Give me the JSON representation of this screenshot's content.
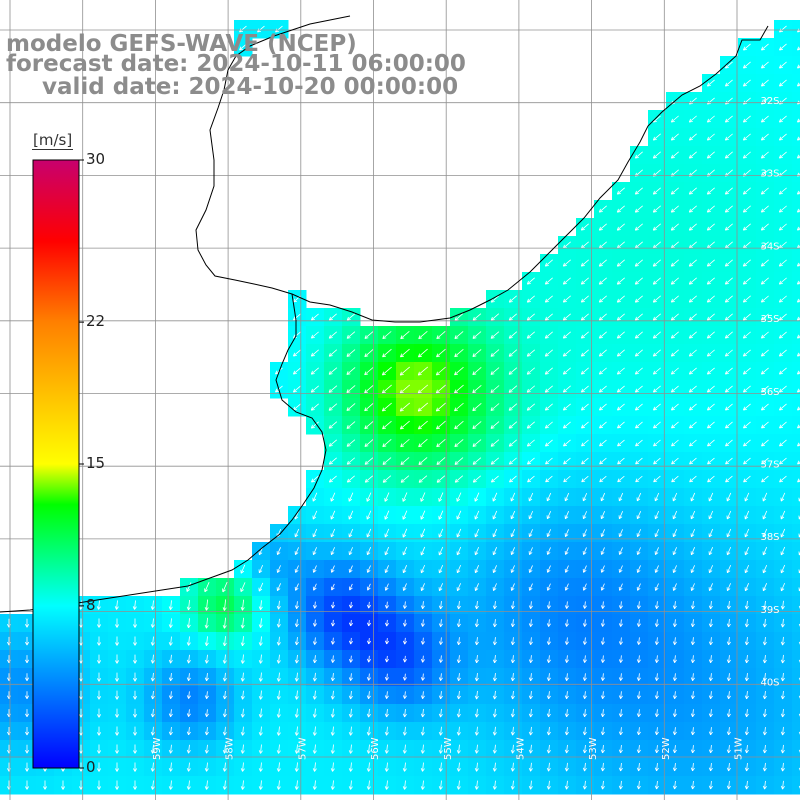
{
  "title": {
    "line1": "modelo GEFS-WAVE (NCEP)",
    "line2": "forecast date: 2024-10-11 06:00:00",
    "line3": "valid date: 2024-10-20 00:00:00"
  },
  "colorbar": {
    "unit": "[m/s]",
    "ticks": [
      {
        "label": "30",
        "value": 30
      },
      {
        "label": "22",
        "value": 22
      },
      {
        "label": "15",
        "value": 15
      },
      {
        "label": "8",
        "value": 8
      },
      {
        "label": "0",
        "value": 0
      }
    ],
    "min": 0,
    "max": 30,
    "colors": [
      "#0000ff",
      "#00ffff",
      "#00ff00",
      "#ffff00",
      "#ff8c00",
      "#ff0000",
      "#c8006e"
    ]
  },
  "lat_labels": [
    "32S",
    "33S",
    "34S",
    "35S",
    "36S",
    "37S",
    "38S",
    "39S",
    "40S"
  ],
  "lon_labels": [
    "59W",
    "58W",
    "57W",
    "56W",
    "55W",
    "54W",
    "53W",
    "52W",
    "51W"
  ],
  "colors": {
    "land": "#ffffff",
    "coast": "#000000",
    "grid": "#909090",
    "arrow": "#ffffff",
    "title": "#8c8c8c"
  }
}
